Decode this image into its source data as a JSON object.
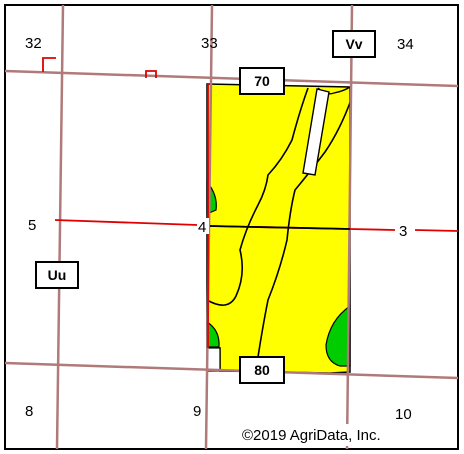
{
  "map": {
    "section_labels": [
      "32",
      "33",
      "34",
      "5",
      "4",
      "3",
      "8",
      "9",
      "10"
    ],
    "road_labels": [
      "70",
      "80"
    ],
    "soil_labels": [
      "Vv",
      "Uu"
    ],
    "copyright": "©2019 AgriData, Inc.",
    "colors": {
      "field_fill": "#ffff00",
      "soil_green": "#00cc00",
      "section_line": "#b07a7a",
      "township_line": "#e00000",
      "soil_boundary": "#000000",
      "border": "#000000"
    }
  }
}
